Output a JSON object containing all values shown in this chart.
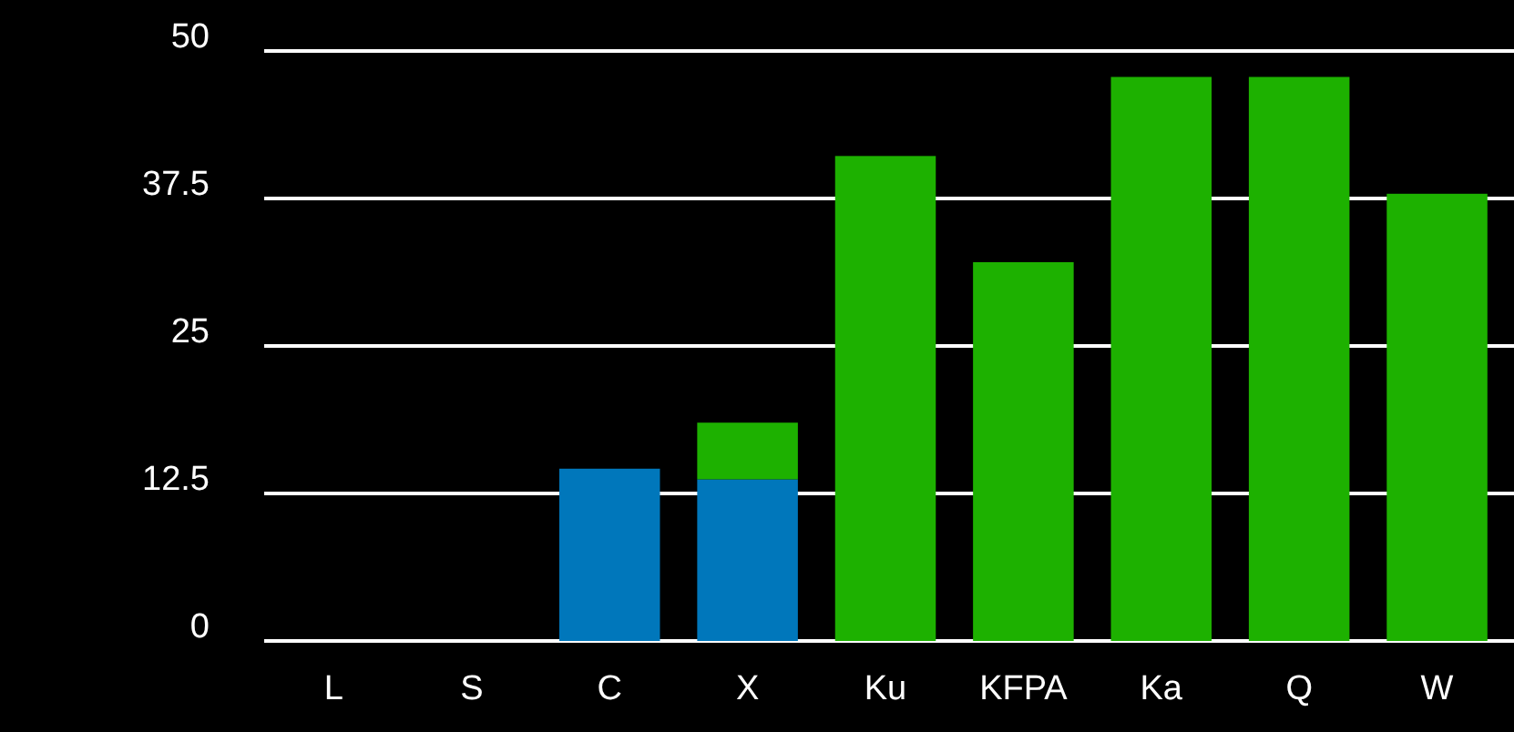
{
  "chart_data": {
    "type": "bar",
    "stacked": true,
    "categories": [
      "L",
      "S",
      "C",
      "X",
      "Ku",
      "KFPA",
      "Ka",
      "Q",
      "W"
    ],
    "series": [
      {
        "color": "#0077bb",
        "values": [
          null,
          null,
          14.6,
          13.7,
          null,
          null,
          null,
          null,
          null
        ]
      },
      {
        "color": "#1db100",
        "values": [
          null,
          null,
          null,
          4.8,
          41.1,
          32.1,
          47.8,
          47.8,
          37.9
        ]
      }
    ],
    "ylim": [
      0,
      50
    ],
    "yticks": [
      0,
      12.5,
      25,
      37.5,
      50
    ],
    "grid": "y"
  }
}
